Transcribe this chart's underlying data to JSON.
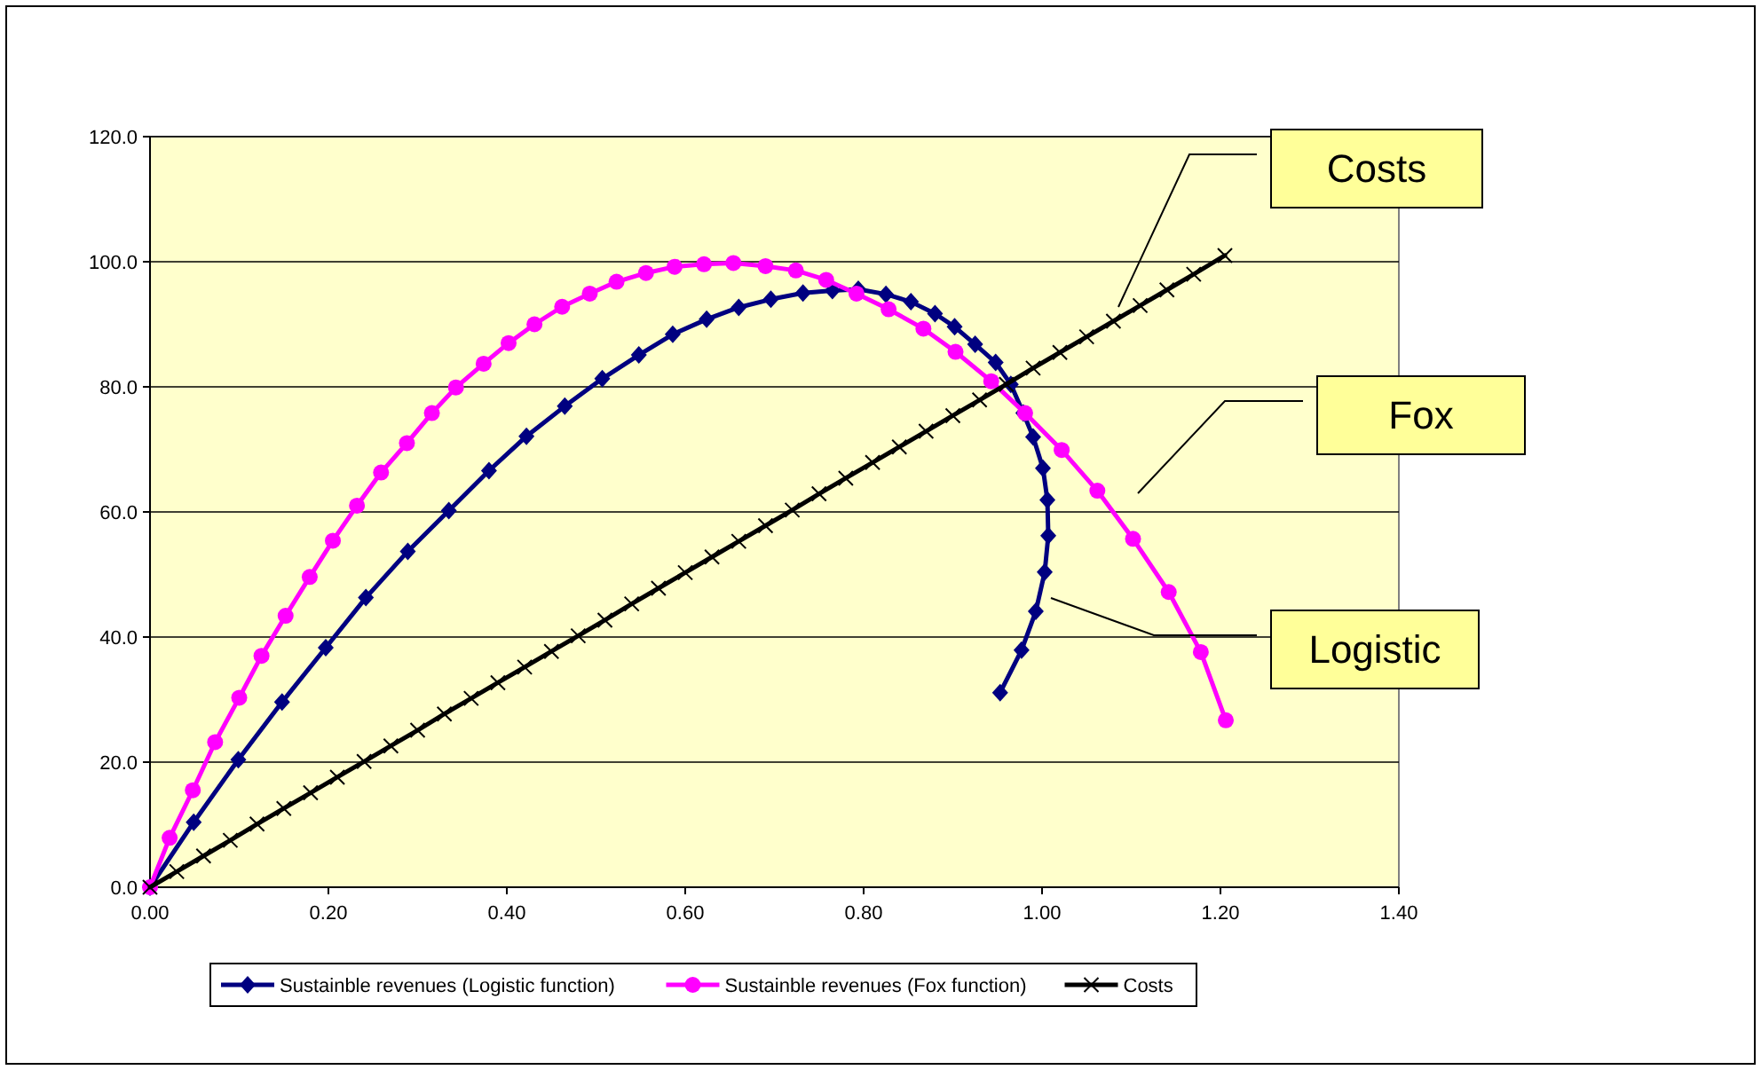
{
  "chart_data": {
    "type": "line",
    "xlim": [
      0,
      1.4
    ],
    "ylim": [
      0,
      120
    ],
    "xticks": [
      {
        "value": 0,
        "label": "0.00"
      },
      {
        "value": 0.2,
        "label": "0.20"
      },
      {
        "value": 0.4,
        "label": "0.40"
      },
      {
        "value": 0.6,
        "label": "0.60"
      },
      {
        "value": 0.8,
        "label": "0.80"
      },
      {
        "value": 1.0,
        "label": "1.00"
      },
      {
        "value": 1.2,
        "label": "1.20"
      },
      {
        "value": 1.4,
        "label": "1.40"
      }
    ],
    "yticks": [
      {
        "value": 0,
        "label": "0.0"
      },
      {
        "value": 20,
        "label": "20.0"
      },
      {
        "value": 40,
        "label": "40.0"
      },
      {
        "value": 60,
        "label": "60.0"
      },
      {
        "value": 80,
        "label": "80.0"
      },
      {
        "value": 100,
        "label": "100.0"
      },
      {
        "value": 120,
        "label": "120.0"
      }
    ],
    "grid": "y",
    "legend": "bottom",
    "line_style": "solid",
    "series": [
      {
        "name": "Sustainble revenues (Logistic function)",
        "color": "#000080",
        "marker": "diamond",
        "x": [
          0,
          0.049,
          0.099,
          0.148,
          0.197,
          0.242,
          0.289,
          0.335,
          0.38,
          0.422,
          0.465,
          0.507,
          0.548,
          0.586,
          0.624,
          0.66,
          0.696,
          0.732,
          0.765,
          0.794,
          0.825,
          0.853,
          0.88,
          0.902,
          0.925,
          0.948,
          0.965,
          0.979,
          0.99,
          1.001,
          1.006,
          1.007,
          1.003,
          0.993,
          0.977,
          0.953
        ],
        "values": [
          0,
          10.4,
          20.4,
          29.6,
          38.3,
          46.3,
          53.7,
          60.2,
          66.6,
          72.1,
          76.9,
          81.3,
          85.1,
          88.4,
          90.8,
          92.7,
          94.0,
          95.0,
          95.4,
          95.6,
          94.8,
          93.6,
          91.7,
          89.6,
          86.8,
          83.9,
          80.4,
          75.8,
          72.0,
          67.0,
          61.9,
          56.2,
          50.4,
          44.1,
          37.9,
          31.1
        ]
      },
      {
        "name": "Sustainble revenues (Fox function)",
        "color": "#ff00ff",
        "marker": "circle",
        "x": [
          0,
          0.022,
          0.048,
          0.073,
          0.1,
          0.125,
          0.152,
          0.179,
          0.205,
          0.232,
          0.259,
          0.288,
          0.316,
          0.343,
          0.374,
          0.402,
          0.431,
          0.462,
          0.493,
          0.523,
          0.556,
          0.588,
          0.621,
          0.654,
          0.69,
          0.724,
          0.758,
          0.792,
          0.828,
          0.867,
          0.903,
          0.943,
          0.981,
          1.022,
          1.062,
          1.102,
          1.142,
          1.178,
          1.206
        ],
        "values": [
          0,
          7.9,
          15.5,
          23.2,
          30.3,
          37.0,
          43.4,
          49.6,
          55.4,
          61.0,
          66.3,
          71.0,
          75.8,
          79.9,
          83.7,
          87.0,
          90.0,
          92.8,
          94.9,
          96.8,
          98.2,
          99.2,
          99.6,
          99.8,
          99.3,
          98.6,
          97.1,
          94.9,
          92.4,
          89.3,
          85.6,
          80.9,
          75.8,
          69.9,
          63.4,
          55.7,
          47.2,
          37.6,
          26.7
        ]
      },
      {
        "name": "Costs",
        "color": "#000000",
        "marker": "cross",
        "x": [
          0,
          0.03,
          0.06,
          0.09,
          0.12,
          0.15,
          0.18,
          0.21,
          0.24,
          0.27,
          0.3,
          0.33,
          0.36,
          0.39,
          0.42,
          0.45,
          0.48,
          0.51,
          0.54,
          0.57,
          0.6,
          0.63,
          0.66,
          0.69,
          0.72,
          0.75,
          0.78,
          0.81,
          0.84,
          0.87,
          0.9,
          0.93,
          0.96,
          0.99,
          1.02,
          1.05,
          1.08,
          1.11,
          1.14,
          1.17,
          1.205
        ],
        "values": [
          0,
          2.5,
          5.0,
          7.5,
          10.1,
          12.6,
          15.1,
          17.6,
          20.1,
          22.6,
          25.1,
          27.7,
          30.2,
          32.7,
          35.2,
          37.7,
          40.2,
          42.7,
          45.3,
          47.8,
          50.3,
          52.8,
          55.3,
          57.8,
          60.3,
          62.9,
          65.4,
          67.9,
          70.4,
          72.9,
          75.4,
          77.9,
          80.4,
          83.0,
          85.5,
          88.0,
          90.5,
          93.0,
          95.5,
          98.0,
          101.0
        ]
      }
    ],
    "annotations": [
      "Costs",
      "Fox",
      "Logistic"
    ]
  }
}
